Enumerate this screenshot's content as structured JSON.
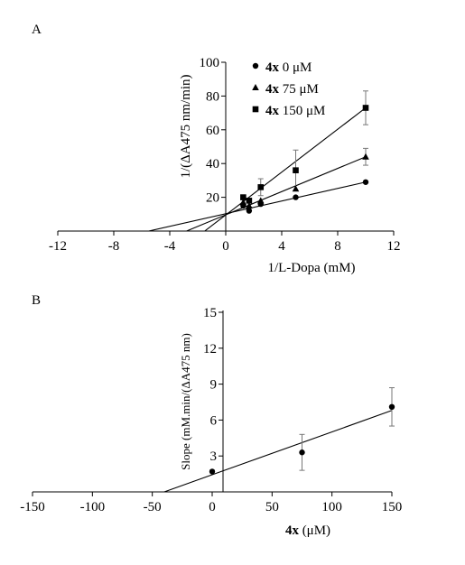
{
  "chart_data": [
    {
      "panel_label": "A",
      "type": "scatter",
      "xlabel": "1/L-Dopa (mM)",
      "ylabel": "1/(ΔA475 nm/min)",
      "xlim": [
        -12,
        12
      ],
      "ylim": [
        0,
        100
      ],
      "xticks": [
        -12,
        -8,
        -4,
        0,
        4,
        8,
        12
      ],
      "yticks": [
        20,
        40,
        60,
        80,
        100
      ],
      "xtick_labels": [
        "-12",
        "-8",
        "-4",
        "0",
        "4",
        "8",
        "12"
      ],
      "ytick_labels": [
        "20",
        "40",
        "60",
        "80",
        "100"
      ],
      "grid": false,
      "legend_position": "top-right",
      "series": [
        {
          "name": "4x 0 μM",
          "name_bold": "4x",
          "name_rest": " 0 μM",
          "marker": "circle",
          "x": [
            1.25,
            1.67,
            2.5,
            5,
            10
          ],
          "y": [
            15,
            12,
            16,
            20,
            29
          ],
          "err": [
            0,
            0,
            0,
            0,
            0
          ],
          "line_x": [
            -5.5,
            10
          ],
          "line_y": [
            0,
            29
          ]
        },
        {
          "name": "4x 75 μM",
          "name_bold": "4x",
          "name_rest": " 75 μM",
          "marker": "triangle",
          "x": [
            1.25,
            1.67,
            2.5,
            5,
            10
          ],
          "y": [
            17,
            15,
            18,
            25,
            44
          ],
          "err": [
            0,
            0,
            0,
            0,
            5
          ],
          "line_x": [
            -2.8,
            10
          ],
          "line_y": [
            0,
            44
          ]
        },
        {
          "name": "4x 150 μM",
          "name_bold": "4x",
          "name_rest": " 150 μM",
          "marker": "square",
          "x": [
            1.25,
            1.67,
            2.5,
            5,
            10
          ],
          "y": [
            20,
            18,
            26,
            36,
            73
          ],
          "err": [
            0,
            0,
            5,
            12,
            10
          ],
          "line_x": [
            -1.5,
            10
          ],
          "line_y": [
            0,
            73
          ]
        }
      ]
    },
    {
      "panel_label": "B",
      "type": "scatter",
      "xlabel_bold": "4x",
      "xlabel_rest": " (μM)",
      "ylabel": "Slope (mM.min/(ΔA475 nm)",
      "xlim": [
        -150,
        150
      ],
      "ylim": [
        0,
        15
      ],
      "xticks": [
        -150,
        -100,
        -50,
        0,
        50,
        100,
        150
      ],
      "yticks": [
        3,
        6,
        9,
        12,
        15
      ],
      "xtick_labels": [
        "-150",
        "-100",
        "-50",
        "0",
        "50",
        "100",
        "150"
      ],
      "ytick_labels": [
        "3",
        "6",
        "9",
        "12",
        "15"
      ],
      "grid": false,
      "series": [
        {
          "marker": "circle",
          "x": [
            0,
            75,
            150
          ],
          "y": [
            1.7,
            3.3,
            7.1
          ],
          "err": [
            0,
            1.5,
            1.6
          ],
          "line_x": [
            -40,
            150
          ],
          "line_y": [
            0,
            6.8
          ]
        }
      ]
    }
  ]
}
